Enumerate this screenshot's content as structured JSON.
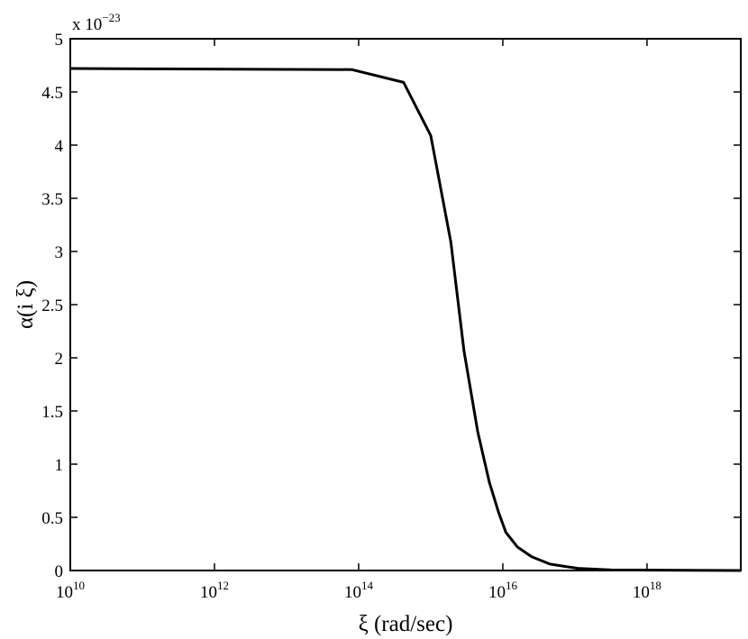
{
  "chart_data": {
    "type": "line",
    "x_label": "ξ (rad/sec)",
    "y_label": "α(i ξ)",
    "y_multiplier": "x 10^−23",
    "xscale": "log",
    "grid": false,
    "xlim": [
      10000000000.0,
      2e+19
    ],
    "ylim": [
      0,
      5
    ],
    "xticks": [
      {
        "value": 10000000000.0,
        "label": "10^10"
      },
      {
        "value": 1000000000000.0,
        "label": "10^12"
      },
      {
        "value": 100000000000000.0,
        "label": "10^14"
      },
      {
        "value": 1e+16,
        "label": "10^16"
      },
      {
        "value": 1e+18,
        "label": "10^18"
      }
    ],
    "yticks": [
      0,
      0.5,
      1,
      1.5,
      2,
      2.5,
      3,
      3.5,
      4,
      4.5,
      5
    ],
    "series": [
      {
        "color": "#000000",
        "x": [
          10000000000.0,
          80000000000000.0,
          420000000000000.0,
          1000000000000000.0,
          1900000000000000.0,
          2900000000000000.0,
          4500000000000000.0,
          6500000000000000.0,
          8700000000000000.0,
          1.1e+16,
          1.6e+16,
          2.5e+16,
          4.5e+16,
          1.1e+17,
          3.2e+17,
          2e+19
        ],
        "values": [
          4.72,
          4.71,
          4.59,
          4.09,
          3.09,
          2.06,
          1.3,
          0.83,
          0.55,
          0.36,
          0.22,
          0.13,
          0.06,
          0.02,
          0.005,
          0
        ]
      }
    ]
  }
}
